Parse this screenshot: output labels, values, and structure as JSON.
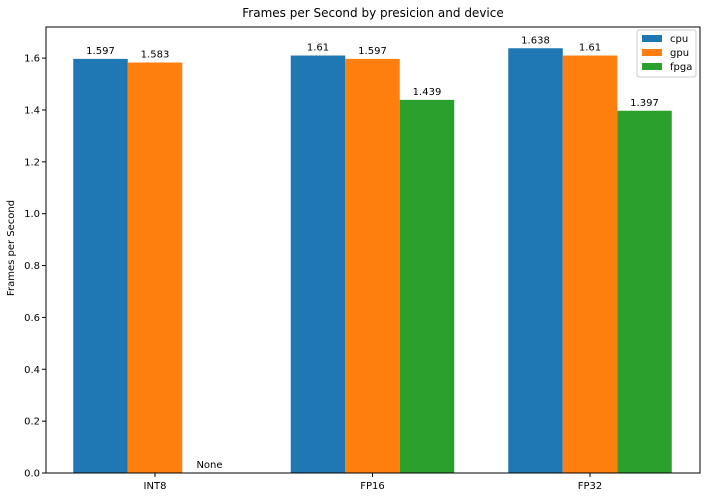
{
  "chart_data": {
    "type": "bar",
    "title": "Frames per Second by presicion and device",
    "xlabel": "",
    "ylabel": "Frames per Second",
    "categories": [
      "INT8",
      "FP16",
      "FP32"
    ],
    "series": [
      {
        "name": "cpu",
        "color": "#1f77b4",
        "values": [
          1.597,
          1.61,
          1.638
        ],
        "labels": [
          "1.597",
          "1.61",
          "1.638"
        ]
      },
      {
        "name": "gpu",
        "color": "#ff7f0e",
        "values": [
          1.583,
          1.597,
          1.61
        ],
        "labels": [
          "1.583",
          "1.597",
          "1.61"
        ]
      },
      {
        "name": "fpga",
        "color": "#2ca02c",
        "values": [
          0,
          1.439,
          1.397
        ],
        "labels": [
          "None",
          "1.439",
          "1.397"
        ]
      }
    ],
    "ylim": [
      0,
      1.72
    ],
    "yticks": [
      "0.0",
      "0.2",
      "0.4",
      "0.6",
      "0.8",
      "1.0",
      "1.2",
      "1.4",
      "1.6"
    ],
    "grid": false,
    "legend_position": "top-right"
  }
}
